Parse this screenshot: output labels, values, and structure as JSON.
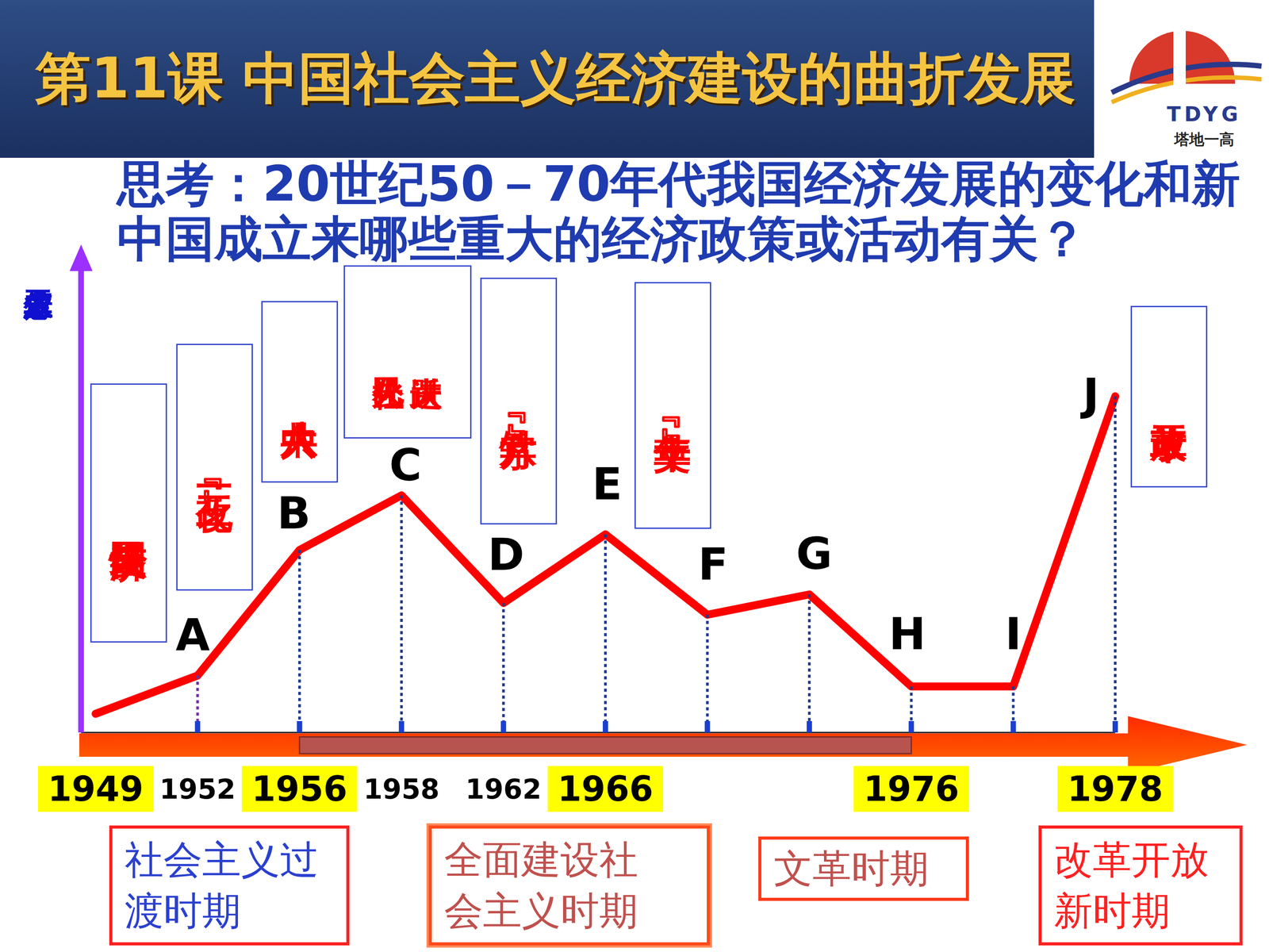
{
  "slide": {
    "title": "第11课 中国社会主义经济建设的曲折发展",
    "logo": {
      "text": "TDYG",
      "subtext": "塔地一高"
    }
  },
  "chart_data": {
    "type": "line",
    "title": [
      "思考：20世纪50－70年代我国经济发展的变化和新",
      "中国成立来哪些重大的经济政策或活动有关？"
    ],
    "y_label": "工农业生产总值",
    "categories": [
      "1949",
      "1952",
      "1956",
      "1958",
      "1962",
      "1966",
      null,
      null,
      "1976",
      null,
      "1978"
    ],
    "values": [
      24,
      73,
      234,
      304,
      166,
      254,
      151,
      177,
      59,
      59,
      431
    ],
    "point_labels": [
      null,
      "A",
      "B",
      "C",
      "D",
      "E",
      "F",
      "G",
      "H",
      "I",
      "J"
    ],
    "color": "#ff0000",
    "ylim": [
      0,
      600
    ],
    "tick_labels": "x",
    "annotations": [
      [
        "国民经济恢复"
      ],
      [
        "『一化三改』"
      ],
      [
        "中共八大"
      ],
      [
        "人民公社化",
        "大跃进"
      ],
      [
        "『八字方针』"
      ],
      [
        "『十年文革』"
      ],
      [
        "改革开放"
      ]
    ],
    "periods": [
      [
        "社会主义过",
        "渡时期"
      ],
      [
        "全面建设社",
        "会主义时期"
      ],
      [
        "文革时期"
      ],
      [
        "改革开放",
        "新时期"
      ]
    ]
  }
}
